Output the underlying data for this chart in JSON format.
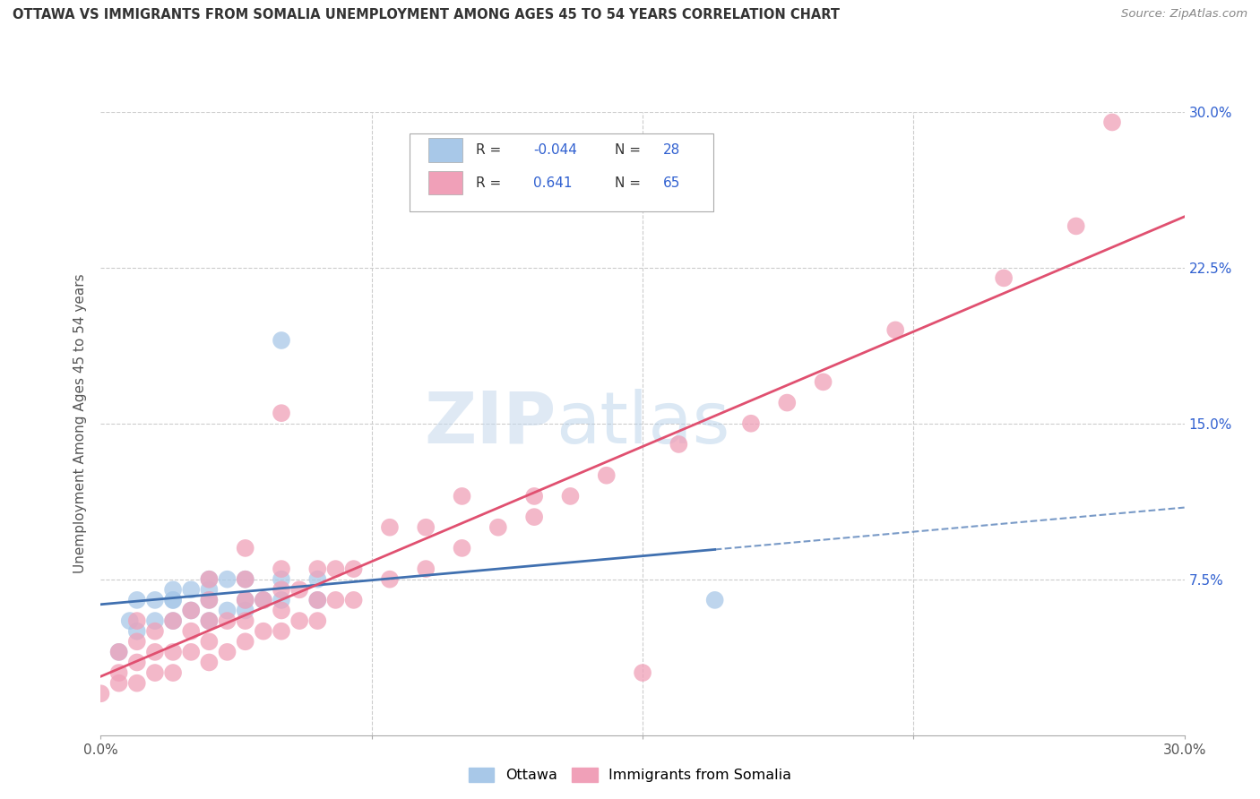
{
  "title": "OTTAWA VS IMMIGRANTS FROM SOMALIA UNEMPLOYMENT AMONG AGES 45 TO 54 YEARS CORRELATION CHART",
  "source": "Source: ZipAtlas.com",
  "ylabel": "Unemployment Among Ages 45 to 54 years",
  "xlim": [
    0.0,
    0.3
  ],
  "ylim": [
    0.0,
    0.3
  ],
  "xticks": [
    0.0,
    0.075,
    0.15,
    0.225,
    0.3
  ],
  "xtick_labels": [
    "0.0%",
    "",
    "",
    "",
    "30.0%"
  ],
  "yticks": [
    0.0,
    0.075,
    0.15,
    0.225,
    0.3
  ],
  "right_ytick_labels": [
    "",
    "7.5%",
    "15.0%",
    "22.5%",
    "30.0%"
  ],
  "ottawa_R": -0.044,
  "ottawa_N": 28,
  "somalia_R": 0.641,
  "somalia_N": 65,
  "ottawa_color": "#a8c8e8",
  "somalia_color": "#f0a0b8",
  "ottawa_line_color": "#4070b0",
  "somalia_line_color": "#e05070",
  "background_color": "#ffffff",
  "grid_color": "#cccccc",
  "watermark_zip": "ZIP",
  "watermark_atlas": "atlas",
  "legend_R_color": "#3060d0",
  "legend_N_color": "#3060d0",
  "ottawa_x": [
    0.005,
    0.008,
    0.01,
    0.01,
    0.015,
    0.015,
    0.02,
    0.02,
    0.02,
    0.02,
    0.025,
    0.025,
    0.03,
    0.03,
    0.03,
    0.03,
    0.035,
    0.035,
    0.04,
    0.04,
    0.04,
    0.045,
    0.05,
    0.05,
    0.06,
    0.06,
    0.17,
    0.05
  ],
  "ottawa_y": [
    0.04,
    0.055,
    0.05,
    0.065,
    0.055,
    0.065,
    0.055,
    0.065,
    0.065,
    0.07,
    0.06,
    0.07,
    0.055,
    0.065,
    0.07,
    0.075,
    0.06,
    0.075,
    0.06,
    0.065,
    0.075,
    0.065,
    0.065,
    0.075,
    0.065,
    0.075,
    0.065,
    0.19
  ],
  "somalia_x": [
    0.0,
    0.005,
    0.005,
    0.005,
    0.01,
    0.01,
    0.01,
    0.01,
    0.015,
    0.015,
    0.015,
    0.02,
    0.02,
    0.02,
    0.025,
    0.025,
    0.025,
    0.03,
    0.03,
    0.03,
    0.03,
    0.03,
    0.035,
    0.035,
    0.04,
    0.04,
    0.04,
    0.04,
    0.04,
    0.045,
    0.045,
    0.05,
    0.05,
    0.05,
    0.05,
    0.05,
    0.055,
    0.055,
    0.06,
    0.06,
    0.06,
    0.065,
    0.065,
    0.07,
    0.07,
    0.08,
    0.08,
    0.09,
    0.09,
    0.1,
    0.1,
    0.11,
    0.12,
    0.12,
    0.13,
    0.14,
    0.15,
    0.16,
    0.18,
    0.19,
    0.2,
    0.22,
    0.25,
    0.27,
    0.28
  ],
  "somalia_y": [
    0.02,
    0.025,
    0.03,
    0.04,
    0.025,
    0.035,
    0.045,
    0.055,
    0.03,
    0.04,
    0.05,
    0.03,
    0.04,
    0.055,
    0.04,
    0.05,
    0.06,
    0.035,
    0.045,
    0.055,
    0.065,
    0.075,
    0.04,
    0.055,
    0.045,
    0.055,
    0.065,
    0.075,
    0.09,
    0.05,
    0.065,
    0.05,
    0.06,
    0.07,
    0.08,
    0.155,
    0.055,
    0.07,
    0.055,
    0.065,
    0.08,
    0.065,
    0.08,
    0.065,
    0.08,
    0.075,
    0.1,
    0.08,
    0.1,
    0.09,
    0.115,
    0.1,
    0.105,
    0.115,
    0.115,
    0.125,
    0.03,
    0.14,
    0.15,
    0.16,
    0.17,
    0.195,
    0.22,
    0.245,
    0.295
  ]
}
